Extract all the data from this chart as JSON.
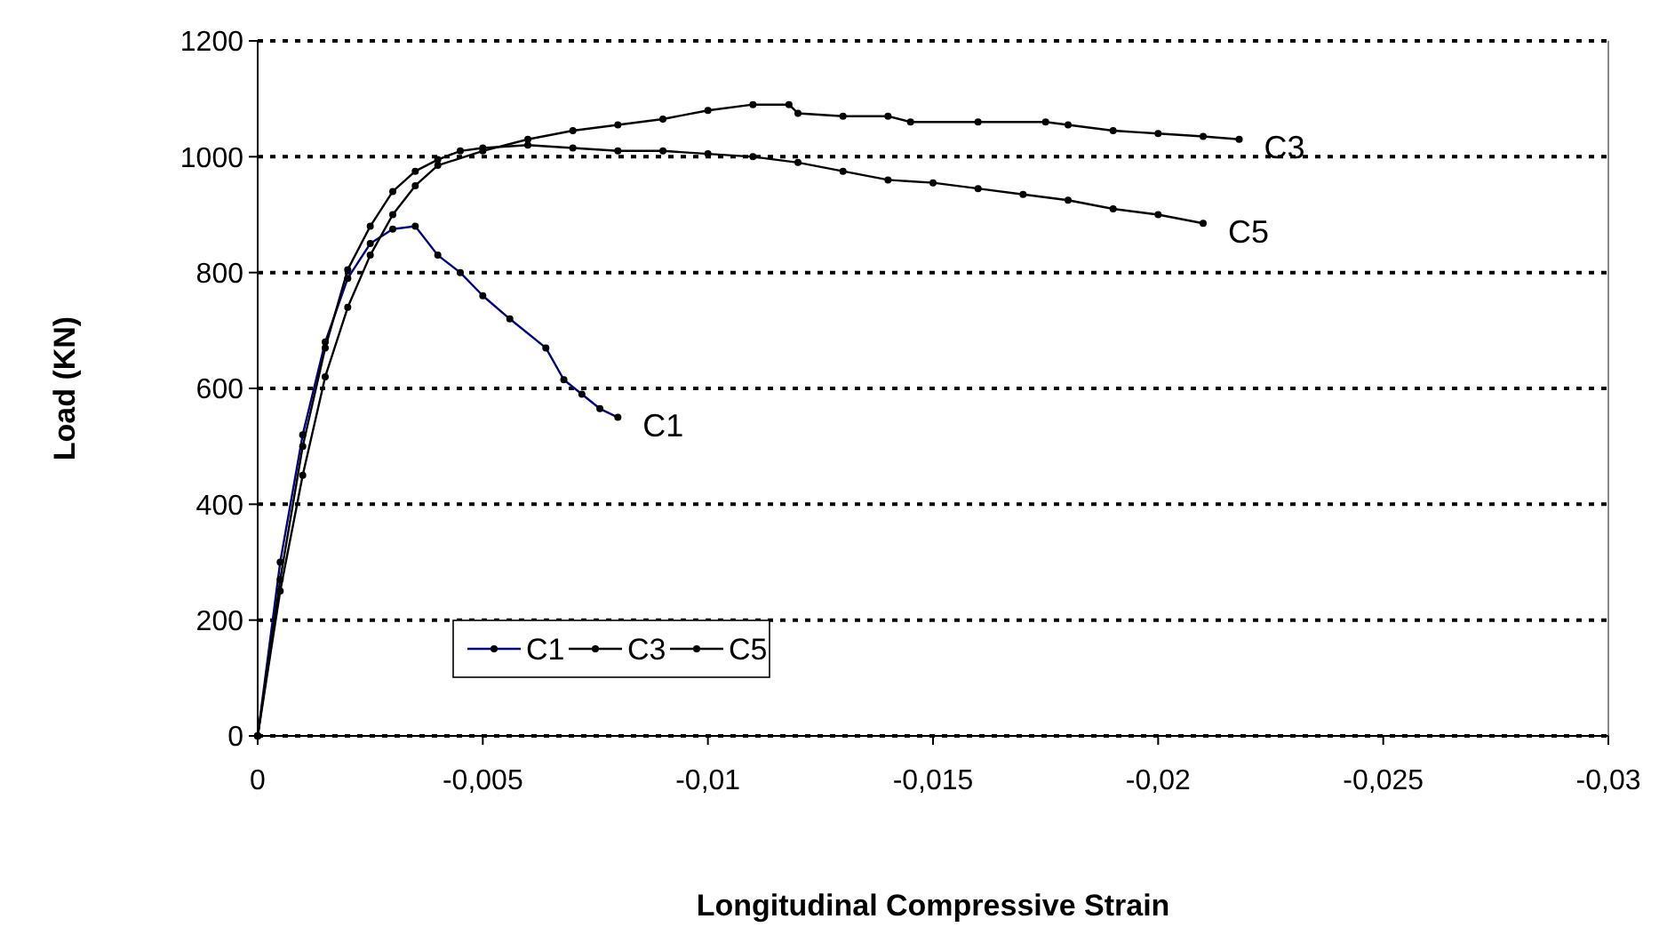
{
  "chart_data": {
    "type": "line",
    "xlabel": "Longitudinal Compressive Strain",
    "ylabel": "Load (KN)",
    "xlim": [
      0,
      -0.03
    ],
    "xticks": [
      0,
      {
        "value": -0.005,
        "label": "-0,005"
      },
      {
        "value": -0.01,
        "label": "-0,01"
      },
      {
        "value": -0.015,
        "label": "-0,015"
      },
      {
        "value": -0.02,
        "label": "-0,02"
      },
      {
        "value": -0.025,
        "label": "-0,025"
      },
      {
        "value": -0.03,
        "label": "-0,03"
      }
    ],
    "ylim": [
      0,
      1200
    ],
    "yticks": [
      0,
      200,
      400,
      600,
      800,
      1000,
      1200
    ],
    "grid": "y",
    "legend": "bottom left",
    "marker": "circle",
    "line_style": "solid",
    "series": [
      {
        "name": "C1",
        "color": "#000080",
        "x": [
          0,
          -0.0005,
          -0.001,
          -0.0015,
          -0.002,
          -0.0025,
          -0.003,
          -0.0035,
          -0.004,
          -0.0045,
          -0.005,
          -0.0056,
          -0.0064,
          -0.0068,
          -0.0072,
          -0.0076,
          -0.008
        ],
        "values": [
          0,
          300,
          520,
          680,
          790,
          850,
          875,
          880,
          830,
          800,
          760,
          720,
          670,
          615,
          590,
          565,
          550
        ]
      },
      {
        "name": "C3",
        "color": "#000000",
        "x": [
          0,
          -0.0005,
          -0.001,
          -0.0015,
          -0.002,
          -0.0025,
          -0.003,
          -0.0035,
          -0.004,
          -0.005,
          -0.006,
          -0.007,
          -0.008,
          -0.009,
          -0.01,
          -0.011,
          -0.0118,
          -0.012,
          -0.013,
          -0.014,
          -0.0145,
          -0.016,
          -0.0175,
          -0.018,
          -0.019,
          -0.02,
          -0.021,
          -0.0218
        ],
        "values": [
          0,
          250,
          450,
          620,
          740,
          830,
          900,
          950,
          985,
          1010,
          1030,
          1045,
          1055,
          1065,
          1080,
          1090,
          1090,
          1075,
          1070,
          1070,
          1060,
          1060,
          1060,
          1055,
          1045,
          1040,
          1035,
          1030
        ]
      },
      {
        "name": "C5",
        "color": "#000000",
        "x": [
          0,
          -0.0005,
          -0.001,
          -0.0015,
          -0.002,
          -0.0025,
          -0.003,
          -0.0035,
          -0.004,
          -0.0045,
          -0.005,
          -0.006,
          -0.007,
          -0.008,
          -0.009,
          -0.01,
          -0.011,
          -0.012,
          -0.013,
          -0.014,
          -0.015,
          -0.016,
          -0.017,
          -0.018,
          -0.019,
          -0.02,
          -0.021
        ],
        "values": [
          0,
          270,
          500,
          670,
          805,
          880,
          940,
          975,
          995,
          1010,
          1015,
          1020,
          1015,
          1010,
          1010,
          1005,
          1000,
          990,
          975,
          960,
          955,
          945,
          935,
          925,
          910,
          900,
          885
        ]
      }
    ],
    "annotations": [
      {
        "text": "C1",
        "x": -0.008,
        "y": 550
      },
      {
        "text": "C3",
        "x": -0.0218,
        "y": 1030
      },
      {
        "text": "C5",
        "x": -0.021,
        "y": 885
      }
    ]
  }
}
